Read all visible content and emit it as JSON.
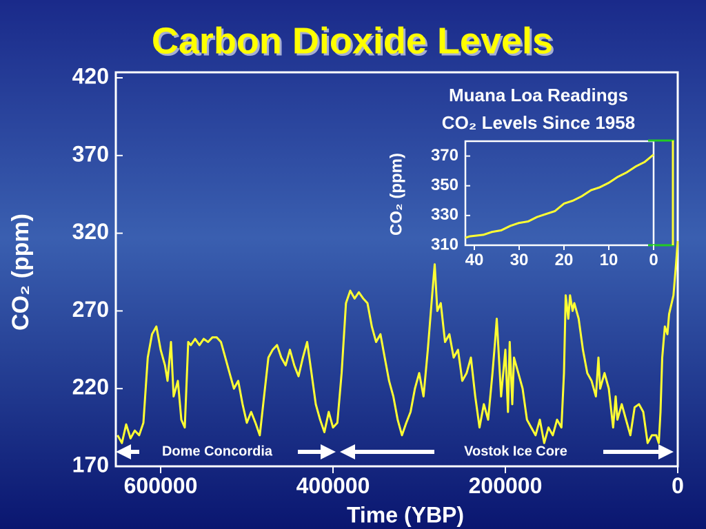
{
  "chart_data": [
    {
      "type": "line",
      "title": "Carbon Dioxide Levels",
      "x_label": "Time (YBP)",
      "y_label": "CO₂ (ppm)",
      "annotations": [
        "Dome Concordia",
        "Vostok Ice Core"
      ],
      "x": [
        650000,
        645000,
        640000,
        635000,
        630000,
        625000,
        620000,
        615000,
        610000,
        605000,
        600000,
        595000,
        592000,
        588000,
        585000,
        580000,
        576000,
        572000,
        568000,
        565000,
        560000,
        555000,
        550000,
        545000,
        540000,
        535000,
        530000,
        525000,
        520000,
        515000,
        510000,
        505000,
        500000,
        495000,
        490000,
        485000,
        480000,
        475000,
        470000,
        465000,
        460000,
        455000,
        450000,
        445000,
        440000,
        435000,
        430000,
        425000,
        420000,
        415000,
        410000,
        405000,
        400000,
        395000,
        390000,
        385000,
        380000,
        375000,
        370000,
        365000,
        360000,
        355000,
        350000,
        345000,
        340000,
        335000,
        330000,
        325000,
        320000,
        315000,
        310000,
        305000,
        300000,
        295000,
        290000,
        285000,
        282000,
        279000,
        275000,
        270000,
        265000,
        260000,
        255000,
        250000,
        245000,
        240000,
        235000,
        230000,
        225000,
        220000,
        215000,
        212000,
        210000,
        207000,
        205000,
        200000,
        197000,
        195000,
        192000,
        190000,
        185000,
        180000,
        175000,
        170000,
        165000,
        160000,
        155000,
        150000,
        145000,
        140000,
        135000,
        132000,
        130000,
        127000,
        125000,
        122000,
        120000,
        115000,
        110000,
        105000,
        100000,
        95000,
        92000,
        90000,
        85000,
        80000,
        75000,
        72000,
        70000,
        65000,
        60000,
        55000,
        50000,
        45000,
        40000,
        35000,
        30000,
        25000,
        22000,
        20000,
        18000,
        15000,
        12000,
        10000,
        5000,
        2000,
        0
      ],
      "series": [
        {
          "color": "#ffff33",
          "values": [
            190,
            185,
            197,
            188,
            193,
            190,
            198,
            240,
            255,
            260,
            245,
            235,
            225,
            250,
            215,
            225,
            200,
            195,
            250,
            248,
            252,
            248,
            252,
            250,
            253,
            253,
            250,
            240,
            230,
            220,
            225,
            210,
            198,
            205,
            198,
            190,
            215,
            240,
            245,
            248,
            240,
            235,
            245,
            235,
            228,
            240,
            250,
            230,
            210,
            200,
            192,
            205,
            195,
            198,
            230,
            275,
            283,
            278,
            282,
            278,
            275,
            260,
            250,
            255,
            240,
            225,
            215,
            200,
            190,
            198,
            205,
            220,
            230,
            215,
            245,
            280,
            300,
            270,
            275,
            250,
            255,
            240,
            245,
            225,
            230,
            240,
            215,
            195,
            210,
            200,
            230,
            250,
            265,
            235,
            215,
            245,
            205,
            250,
            210,
            240,
            230,
            220,
            200,
            195,
            190,
            200,
            185,
            195,
            190,
            200,
            195,
            230,
            280,
            265,
            280,
            270,
            275,
            265,
            245,
            230,
            225,
            215,
            240,
            220,
            230,
            220,
            195,
            215,
            200,
            210,
            200,
            190,
            208,
            210,
            205,
            185,
            190,
            190,
            185,
            205,
            240,
            260,
            255,
            268,
            280,
            300,
            315
          ]
        }
      ],
      "xlim": [
        652000,
        0
      ],
      "xticks": [
        600000,
        400000,
        200000,
        0
      ],
      "ylim": [
        170,
        420
      ],
      "yticks": [
        170,
        220,
        270,
        320,
        370,
        420
      ]
    },
    {
      "type": "line",
      "title": [
        "Muana Loa Readings",
        "CO₂ Levels Since 1958"
      ],
      "y_label": "CO₂ (ppm)",
      "x": [
        42,
        41,
        38,
        36,
        34,
        32,
        30,
        28,
        26,
        24,
        22,
        20,
        18,
        16,
        14,
        12,
        10,
        8,
        6,
        4,
        2,
        0
      ],
      "series": [
        {
          "color": "#ffff33",
          "values": [
            315,
            316,
            317,
            319,
            320,
            323,
            325,
            326,
            329,
            331,
            333,
            338,
            340,
            343,
            347,
            349,
            352,
            356,
            359,
            363,
            366,
            371
          ]
        }
      ],
      "xlim": [
        42,
        0
      ],
      "xticks": [
        40,
        30,
        20,
        10,
        0
      ],
      "ylim": [
        310,
        380
      ],
      "yticks": [
        310,
        330,
        350,
        370
      ]
    }
  ]
}
